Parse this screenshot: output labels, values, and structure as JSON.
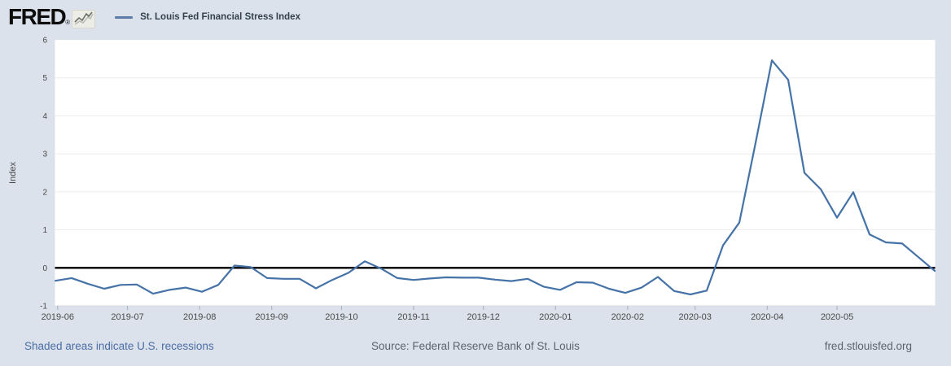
{
  "header": {
    "logo_text": "FRED",
    "logo_registered": "®",
    "legend": {
      "series_label": "St. Louis Fed Financial Stress Index",
      "series_color": "#4572a7"
    }
  },
  "footer": {
    "recession_note": "Shaded areas indicate U.S. recessions",
    "source": "Source: Federal Reserve Bank of St. Louis",
    "site": "fred.stlouisfed.org"
  },
  "colors": {
    "background": "#dce2eb",
    "plot_background": "#ffffff",
    "series_line": "#4572a7",
    "zero_line": "#000000",
    "gridline": "#ececec",
    "axis_text": "#484848",
    "link_text": "#4a6da4",
    "footer_text": "#5a6470"
  },
  "chart_data": {
    "type": "line",
    "title": "St. Louis Fed Financial Stress Index",
    "xlabel": "",
    "ylabel": "Index",
    "ylim": [
      -1,
      6
    ],
    "yticks": [
      -1,
      0,
      1,
      2,
      3,
      4,
      5,
      6
    ],
    "grid": "horizontal-light",
    "zero_baseline": true,
    "legend_position": "top-left-header",
    "frequency": "weekly",
    "month_ticks": [
      {
        "label": "2019-06",
        "day_offset": 1
      },
      {
        "label": "2019-07",
        "day_offset": 31
      },
      {
        "label": "2019-08",
        "day_offset": 62
      },
      {
        "label": "2019-09",
        "day_offset": 93
      },
      {
        "label": "2019-10",
        "day_offset": 123
      },
      {
        "label": "2019-11",
        "day_offset": 154
      },
      {
        "label": "2019-12",
        "day_offset": 184
      },
      {
        "label": "2020-01",
        "day_offset": 215
      },
      {
        "label": "2020-02",
        "day_offset": 246
      },
      {
        "label": "2020-03",
        "day_offset": 275
      },
      {
        "label": "2020-04",
        "day_offset": 306
      },
      {
        "label": "2020-05",
        "day_offset": 336
      }
    ],
    "series": [
      {
        "name": "St. Louis Fed Financial Stress Index",
        "color": "#4572a7",
        "dates": [
          "2019-05-31",
          "2019-06-07",
          "2019-06-14",
          "2019-06-21",
          "2019-06-28",
          "2019-07-05",
          "2019-07-12",
          "2019-07-19",
          "2019-07-26",
          "2019-08-02",
          "2019-08-09",
          "2019-08-16",
          "2019-08-23",
          "2019-08-30",
          "2019-09-06",
          "2019-09-13",
          "2019-09-20",
          "2019-09-27",
          "2019-10-04",
          "2019-10-11",
          "2019-10-18",
          "2019-10-25",
          "2019-11-01",
          "2019-11-08",
          "2019-11-15",
          "2019-11-22",
          "2019-11-29",
          "2019-12-06",
          "2019-12-13",
          "2019-12-20",
          "2019-12-27",
          "2020-01-03",
          "2020-01-10",
          "2020-01-17",
          "2020-01-24",
          "2020-01-31",
          "2020-02-07",
          "2020-02-14",
          "2020-02-21",
          "2020-02-28",
          "2020-03-06",
          "2020-03-13",
          "2020-03-20",
          "2020-03-27",
          "2020-04-03",
          "2020-04-10",
          "2020-04-17",
          "2020-04-24",
          "2020-05-01",
          "2020-05-08",
          "2020-05-15",
          "2020-05-22",
          "2020-05-29",
          "2020-06-05",
          "2020-06-12"
        ],
        "values": [
          -0.34,
          -0.27,
          -0.42,
          -0.55,
          -0.45,
          -0.44,
          -0.68,
          -0.58,
          -0.52,
          -0.63,
          -0.45,
          0.06,
          0.02,
          -0.27,
          -0.29,
          -0.29,
          -0.54,
          -0.32,
          -0.13,
          0.17,
          -0.02,
          -0.27,
          -0.32,
          -0.28,
          -0.25,
          -0.26,
          -0.26,
          -0.31,
          -0.35,
          -0.29,
          -0.5,
          -0.58,
          -0.38,
          -0.39,
          -0.55,
          -0.66,
          -0.52,
          -0.24,
          -0.61,
          -0.7,
          -0.6,
          0.59,
          1.19,
          3.29,
          5.46,
          4.95,
          2.5,
          2.07,
          1.32,
          1.99,
          0.88,
          0.67,
          0.64,
          0.28,
          -0.08
        ]
      }
    ]
  }
}
